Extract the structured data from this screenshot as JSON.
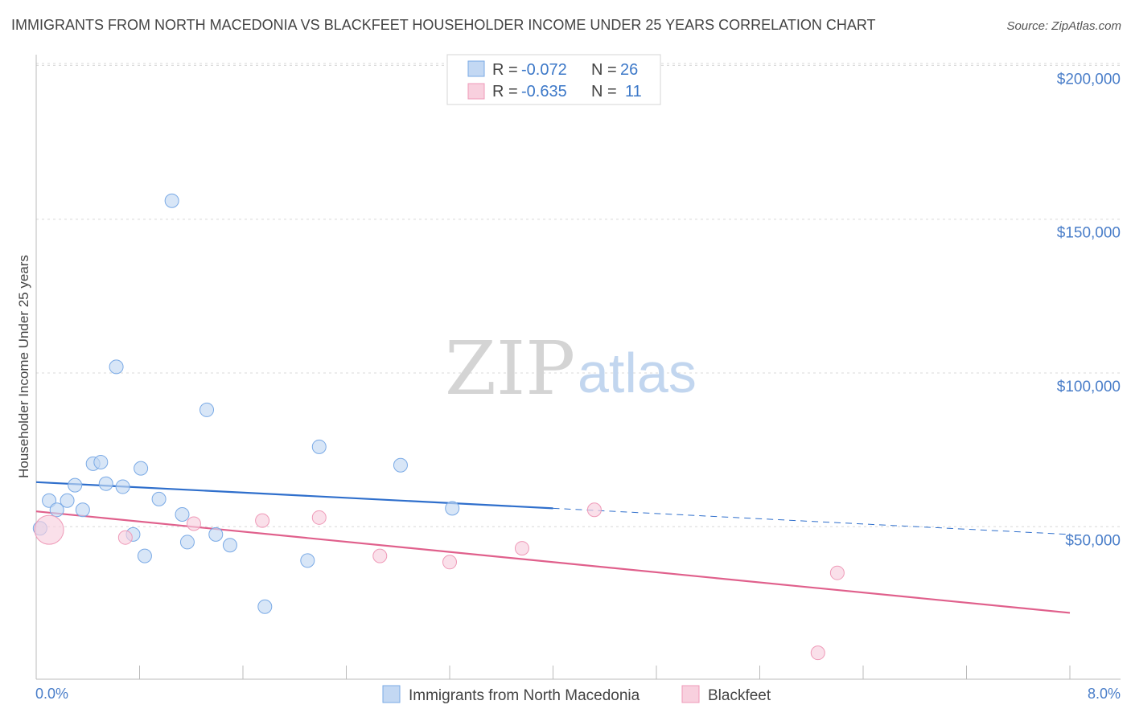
{
  "title": "IMMIGRANTS FROM NORTH MACEDONIA VS BLACKFEET HOUSEHOLDER INCOME UNDER 25 YEARS CORRELATION CHART",
  "source": "Source: ZipAtlas.com",
  "watermark": {
    "zip": "ZIP",
    "atlas": "atlas"
  },
  "legend_box": {
    "rows": [
      {
        "r_label": "R =",
        "r_value": "-0.072",
        "n_label": "N =",
        "n_value": "26"
      },
      {
        "r_label": "R =",
        "r_value": "-0.635",
        "n_label": "N =",
        "n_value": "11"
      }
    ]
  },
  "chart_data": {
    "type": "scatter",
    "title": "IMMIGRANTS FROM NORTH MACEDONIA VS BLACKFEET HOUSEHOLDER INCOME UNDER 25 YEARS CORRELATION CHART",
    "xlabel": "",
    "ylabel": "Householder Income Under 25 years",
    "xlim": [
      0,
      8
    ],
    "ylim": [
      0,
      210000
    ],
    "x_tick_labels": [
      "0.0%",
      "8.0%"
    ],
    "y_ticks": [
      {
        "value": 50000,
        "label": "$50,000"
      },
      {
        "value": 100000,
        "label": "$100,000"
      },
      {
        "value": 150000,
        "label": "$150,000"
      },
      {
        "value": 200000,
        "label": "$200,000"
      }
    ],
    "grid": true,
    "legend_position": "bottom",
    "series": [
      {
        "name": "Immigrants from North Macedonia",
        "color": "#7aaae6",
        "fill": "#c3d8f3",
        "r": -0.072,
        "n": 26,
        "trend": {
          "x0": 0,
          "y0": 64500,
          "x1": 4.0,
          "y1": 56000,
          "dash_to": 8.0,
          "dash_y": 47500,
          "color": "#2f6fcc"
        },
        "points": [
          {
            "x": 0.03,
            "y": 49500,
            "big": false
          },
          {
            "x": 0.1,
            "y": 58500
          },
          {
            "x": 0.16,
            "y": 55500
          },
          {
            "x": 0.24,
            "y": 58500
          },
          {
            "x": 0.3,
            "y": 63500
          },
          {
            "x": 0.36,
            "y": 55500
          },
          {
            "x": 0.44,
            "y": 70500
          },
          {
            "x": 0.5,
            "y": 71000
          },
          {
            "x": 0.54,
            "y": 64000
          },
          {
            "x": 0.62,
            "y": 102000
          },
          {
            "x": 0.67,
            "y": 63000
          },
          {
            "x": 0.75,
            "y": 47500
          },
          {
            "x": 0.81,
            "y": 69000
          },
          {
            "x": 0.84,
            "y": 40500
          },
          {
            "x": 0.95,
            "y": 59000
          },
          {
            "x": 1.05,
            "y": 156000
          },
          {
            "x": 1.13,
            "y": 54000
          },
          {
            "x": 1.17,
            "y": 45000
          },
          {
            "x": 1.32,
            "y": 88000
          },
          {
            "x": 1.39,
            "y": 47500
          },
          {
            "x": 1.5,
            "y": 44000
          },
          {
            "x": 1.77,
            "y": 24000
          },
          {
            "x": 2.1,
            "y": 39000
          },
          {
            "x": 2.19,
            "y": 76000
          },
          {
            "x": 2.82,
            "y": 70000
          },
          {
            "x": 3.22,
            "y": 56000
          }
        ]
      },
      {
        "name": "Blackfeet",
        "color": "#ef9ab8",
        "fill": "#f8d0de",
        "r": -0.635,
        "n": 11,
        "trend": {
          "x0": 0,
          "y0": 55000,
          "x1": 8.0,
          "y1": 22000,
          "color": "#e0608c"
        },
        "points": [
          {
            "x": 0.1,
            "y": 49000,
            "big": true
          },
          {
            "x": 0.69,
            "y": 46500
          },
          {
            "x": 1.22,
            "y": 51000
          },
          {
            "x": 1.75,
            "y": 52000
          },
          {
            "x": 2.19,
            "y": 53000
          },
          {
            "x": 2.66,
            "y": 40500
          },
          {
            "x": 3.2,
            "y": 38500
          },
          {
            "x": 3.76,
            "y": 43000
          },
          {
            "x": 4.32,
            "y": 55500
          },
          {
            "x": 6.2,
            "y": 35000
          },
          {
            "x": 6.05,
            "y": 9000
          }
        ]
      }
    ]
  }
}
